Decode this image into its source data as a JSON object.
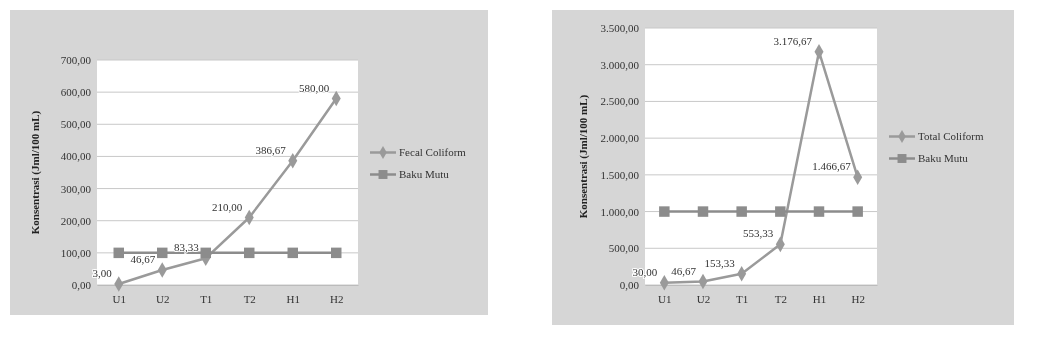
{
  "chart_data": [
    {
      "type": "line",
      "ylabel": "Konsentrasi (Jml/100 mL)",
      "categories": [
        "U1",
        "U2",
        "T1",
        "T2",
        "H1",
        "H2"
      ],
      "series": [
        {
          "name": "Fecal Coliform",
          "color": "#9a9a9a",
          "marker": "diamond",
          "values": [
            3.0,
            46.67,
            83.33,
            210.0,
            386.67,
            580.0
          ],
          "value_labels": [
            "3,00",
            "46,67",
            "83,33",
            "210,00",
            "386,67",
            "580,00"
          ]
        },
        {
          "name": "Baku Mutu",
          "color": "#8c8c8c",
          "marker": "square",
          "values": [
            100,
            100,
            100,
            100,
            100,
            100
          ]
        }
      ],
      "ylim": [
        0,
        700
      ],
      "yticks": [
        {
          "value": 0,
          "label": "0,00"
        },
        {
          "value": 100,
          "label": "100,00"
        },
        {
          "value": 200,
          "label": "200,00"
        },
        {
          "value": 300,
          "label": "300,00"
        },
        {
          "value": 400,
          "label": "400,00"
        },
        {
          "value": 500,
          "label": "500,00"
        },
        {
          "value": 600,
          "label": "600,00"
        },
        {
          "value": 700,
          "label": "700,00"
        }
      ],
      "grid": "y",
      "legend": "right",
      "line_style": "solid"
    },
    {
      "type": "line",
      "ylabel": "Konsentrasi (Jml/100 mL)",
      "categories": [
        "U1",
        "U2",
        "T1",
        "T2",
        "H1",
        "H2"
      ],
      "series": [
        {
          "name": "Total Coliform",
          "color": "#9a9a9a",
          "marker": "diamond",
          "values": [
            30.0,
            46.67,
            153.33,
            553.33,
            3176.67,
            1466.67
          ],
          "value_labels": [
            "30,00",
            "46,67",
            "153,33",
            "553,33",
            "3.176,67",
            "1.466,67"
          ]
        },
        {
          "name": "Baku Mutu",
          "color": "#8c8c8c",
          "marker": "square",
          "values": [
            1000,
            1000,
            1000,
            1000,
            1000,
            1000
          ]
        }
      ],
      "ylim": [
        0,
        3500
      ],
      "yticks": [
        {
          "value": 0,
          "label": "0,00"
        },
        {
          "value": 500,
          "label": "500,00"
        },
        {
          "value": 1000,
          "label": "1.000,00"
        },
        {
          "value": 1500,
          "label": "1.500,00"
        },
        {
          "value": 2000,
          "label": "2.000,00"
        },
        {
          "value": 2500,
          "label": "2.500,00"
        },
        {
          "value": 3000,
          "label": "3.000,00"
        },
        {
          "value": 3500,
          "label": "3.500,00"
        }
      ],
      "grid": "y",
      "legend": "right",
      "line_style": "solid"
    }
  ]
}
